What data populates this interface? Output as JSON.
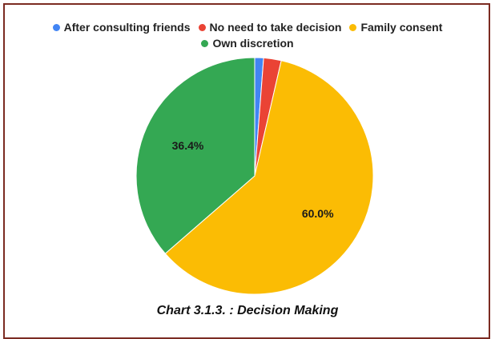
{
  "chart_data": {
    "type": "pie",
    "categories": [
      "After consulting friends",
      "No need to take decision",
      "Family consent",
      "Own discretion"
    ],
    "values": [
      1.2,
      2.4,
      60.0,
      36.4
    ],
    "colors": [
      "#4285f4",
      "#ea4335",
      "#fbbc04",
      "#34a853"
    ],
    "slice_labels": [
      "",
      "",
      "60.0%",
      "36.4%"
    ],
    "legend_position": "top",
    "start_angle_deg": 0,
    "direction": "clockwise"
  },
  "caption": "Chart 3.1.3. : Decision Making"
}
